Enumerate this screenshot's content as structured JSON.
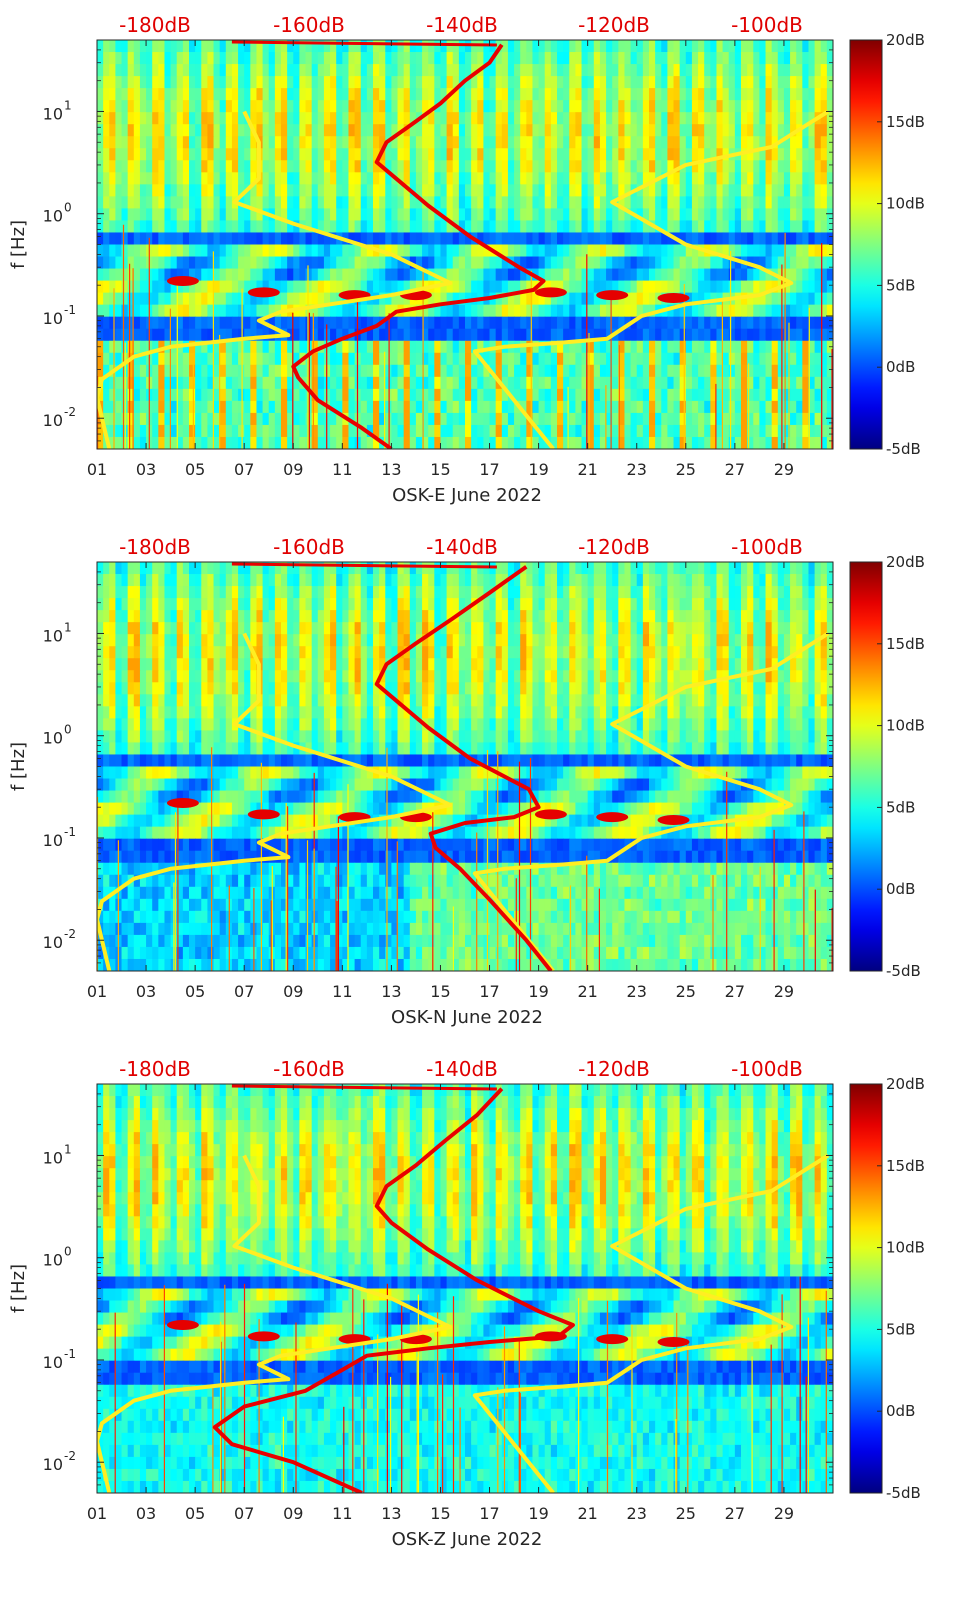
{
  "chart_data": [
    {
      "type": "heatmap",
      "xlabel": "OSK-E June 2022",
      "ylabel": "f [Hz]",
      "x_tick_labels": [
        "01",
        "03",
        "05",
        "07",
        "09",
        "11",
        "13",
        "15",
        "17",
        "19",
        "21",
        "23",
        "25",
        "27",
        "29"
      ],
      "y_tick_labels": [
        "10",
        "10",
        "10",
        "10"
      ],
      "y_tick_exponents": [
        "1",
        "0",
        "-1",
        "-2"
      ],
      "y_scale": "log",
      "ylim": [
        0.005,
        50
      ],
      "top_axis_labels": [
        "-180dB",
        "-160dB",
        "-140dB",
        "-120dB",
        "-100dB"
      ],
      "colorbar_labels": [
        "20dB",
        "15dB",
        "10dB",
        "5dB",
        "0dB",
        "-5dB"
      ],
      "colorbar_range": [
        -5,
        20
      ],
      "colormap": "jet",
      "yellow_curves": [
        {
          "points": [
            [
              1.5,
              0.005
            ],
            [
              1.0,
              0.016
            ],
            [
              1.2,
              0.024
            ],
            [
              2.5,
              0.04
            ],
            [
              4.0,
              0.05
            ],
            [
              7.0,
              0.06
            ],
            [
              8.8,
              0.065
            ],
            [
              7.6,
              0.09
            ],
            [
              8.5,
              0.11
            ],
            [
              10.5,
              0.13
            ],
            [
              13.0,
              0.16
            ],
            [
              15.4,
              0.21
            ],
            [
              13.0,
              0.4
            ],
            [
              9.0,
              0.8
            ],
            [
              6.6,
              1.3
            ],
            [
              7.6,
              2.2
            ],
            [
              7.6,
              5.0
            ],
            [
              7.0,
              10.0
            ]
          ]
        },
        {
          "points": [
            [
              19.6,
              0.005
            ],
            [
              18.0,
              0.015
            ],
            [
              16.4,
              0.045
            ],
            [
              17.6,
              0.05
            ],
            [
              20.0,
              0.055
            ],
            [
              21.8,
              0.06
            ],
            [
              23.2,
              0.1
            ],
            [
              25.0,
              0.13
            ],
            [
              28.0,
              0.16
            ],
            [
              29.3,
              0.21
            ],
            [
              28.0,
              0.3
            ],
            [
              25.0,
              0.5
            ],
            [
              22.0,
              1.3
            ],
            [
              25.0,
              3.0
            ],
            [
              28.5,
              4.5
            ],
            [
              30.8,
              10.0
            ]
          ]
        }
      ],
      "red_curve": [
        [
          13.0,
          0.005
        ],
        [
          11.8,
          0.008
        ],
        [
          10.0,
          0.015
        ],
        [
          9.2,
          0.025
        ],
        [
          9.0,
          0.032
        ],
        [
          9.8,
          0.045
        ],
        [
          11.0,
          0.06
        ],
        [
          12.4,
          0.08
        ],
        [
          13.2,
          0.11
        ],
        [
          15.0,
          0.13
        ],
        [
          17.0,
          0.15
        ],
        [
          18.8,
          0.18
        ],
        [
          19.2,
          0.22
        ],
        [
          18.2,
          0.3
        ],
        [
          16.2,
          0.6
        ],
        [
          14.5,
          1.2
        ],
        [
          13.2,
          2.2
        ],
        [
          12.4,
          3.2
        ],
        [
          12.8,
          5.0
        ],
        [
          14.0,
          8.0
        ],
        [
          15.0,
          12.0
        ],
        [
          16.0,
          20.0
        ],
        [
          17.0,
          30.0
        ],
        [
          17.5,
          45.0
        ]
      ],
      "hot_spots": [
        [
          4.5,
          0.22
        ],
        [
          7.8,
          0.17
        ],
        [
          11.5,
          0.16
        ],
        [
          14.0,
          0.16
        ],
        [
          19.5,
          0.17
        ],
        [
          22.0,
          0.16
        ],
        [
          24.5,
          0.15
        ]
      ]
    },
    {
      "type": "heatmap",
      "xlabel": "OSK-N June 2022",
      "ylabel": "f [Hz]",
      "x_tick_labels": [
        "01",
        "03",
        "05",
        "07",
        "09",
        "11",
        "13",
        "15",
        "17",
        "19",
        "21",
        "23",
        "25",
        "27",
        "29"
      ],
      "y_tick_labels": [
        "10",
        "10",
        "10",
        "10"
      ],
      "y_tick_exponents": [
        "1",
        "0",
        "-1",
        "-2"
      ],
      "y_scale": "log",
      "ylim": [
        0.005,
        50
      ],
      "top_axis_labels": [
        "-180dB",
        "-160dB",
        "-140dB",
        "-120dB",
        "-100dB"
      ],
      "colorbar_labels": [
        "20dB",
        "15dB",
        "10dB",
        "5dB",
        "0dB",
        "-5dB"
      ],
      "colorbar_range": [
        -5,
        20
      ],
      "colormap": "jet",
      "yellow_curves": [
        {
          "points": [
            [
              1.5,
              0.005
            ],
            [
              1.0,
              0.016
            ],
            [
              1.2,
              0.024
            ],
            [
              2.5,
              0.04
            ],
            [
              4.0,
              0.05
            ],
            [
              7.0,
              0.06
            ],
            [
              8.8,
              0.065
            ],
            [
              7.6,
              0.09
            ],
            [
              8.5,
              0.11
            ],
            [
              10.5,
              0.13
            ],
            [
              13.0,
              0.16
            ],
            [
              15.4,
              0.21
            ],
            [
              13.0,
              0.4
            ],
            [
              9.0,
              0.8
            ],
            [
              6.6,
              1.3
            ],
            [
              7.6,
              2.2
            ],
            [
              7.6,
              5.0
            ],
            [
              7.0,
              10.0
            ]
          ]
        },
        {
          "points": [
            [
              19.6,
              0.005
            ],
            [
              18.0,
              0.015
            ],
            [
              16.4,
              0.045
            ],
            [
              17.6,
              0.05
            ],
            [
              20.0,
              0.055
            ],
            [
              21.8,
              0.06
            ],
            [
              23.2,
              0.1
            ],
            [
              25.0,
              0.13
            ],
            [
              28.0,
              0.16
            ],
            [
              29.3,
              0.21
            ],
            [
              28.0,
              0.3
            ],
            [
              25.0,
              0.5
            ],
            [
              22.0,
              1.3
            ],
            [
              25.0,
              3.0
            ],
            [
              28.5,
              4.5
            ],
            [
              30.8,
              10.0
            ]
          ]
        }
      ],
      "red_curve": [
        [
          19.5,
          0.005
        ],
        [
          18.5,
          0.01
        ],
        [
          17.0,
          0.025
        ],
        [
          15.8,
          0.05
        ],
        [
          14.8,
          0.08
        ],
        [
          14.6,
          0.11
        ],
        [
          16.0,
          0.14
        ],
        [
          18.0,
          0.16
        ],
        [
          19.0,
          0.2
        ],
        [
          18.6,
          0.3
        ],
        [
          16.2,
          0.6
        ],
        [
          14.5,
          1.2
        ],
        [
          13.2,
          2.2
        ],
        [
          12.4,
          3.2
        ],
        [
          12.8,
          5.0
        ],
        [
          14.0,
          8.0
        ],
        [
          15.5,
          14.0
        ],
        [
          17.0,
          25.0
        ],
        [
          18.5,
          45.0
        ]
      ],
      "hot_spots": [
        [
          4.5,
          0.22
        ],
        [
          7.8,
          0.17
        ],
        [
          11.5,
          0.16
        ],
        [
          14.0,
          0.16
        ],
        [
          19.5,
          0.17
        ],
        [
          22.0,
          0.16
        ],
        [
          24.5,
          0.15
        ]
      ]
    },
    {
      "type": "heatmap",
      "xlabel": "OSK-Z June 2022",
      "ylabel": "f [Hz]",
      "x_tick_labels": [
        "01",
        "03",
        "05",
        "07",
        "09",
        "11",
        "13",
        "15",
        "17",
        "19",
        "21",
        "23",
        "25",
        "27",
        "29"
      ],
      "y_tick_labels": [
        "10",
        "10",
        "10",
        "10"
      ],
      "y_tick_exponents": [
        "1",
        "0",
        "-1",
        "-2"
      ],
      "y_scale": "log",
      "ylim": [
        0.005,
        50
      ],
      "top_axis_labels": [
        "-180dB",
        "-160dB",
        "-140dB",
        "-120dB",
        "-100dB"
      ],
      "colorbar_labels": [
        "20dB",
        "15dB",
        "10dB",
        "5dB",
        "0dB",
        "-5dB"
      ],
      "colorbar_range": [
        -5,
        20
      ],
      "colormap": "jet",
      "yellow_curves": [
        {
          "points": [
            [
              1.5,
              0.005
            ],
            [
              1.0,
              0.016
            ],
            [
              1.2,
              0.024
            ],
            [
              2.5,
              0.04
            ],
            [
              4.0,
              0.05
            ],
            [
              7.0,
              0.06
            ],
            [
              8.8,
              0.065
            ],
            [
              7.6,
              0.09
            ],
            [
              8.5,
              0.11
            ],
            [
              10.5,
              0.13
            ],
            [
              13.0,
              0.16
            ],
            [
              15.4,
              0.21
            ],
            [
              13.0,
              0.4
            ],
            [
              9.0,
              0.8
            ],
            [
              6.6,
              1.3
            ],
            [
              7.6,
              2.2
            ],
            [
              7.6,
              5.0
            ],
            [
              7.0,
              10.0
            ]
          ]
        },
        {
          "points": [
            [
              19.6,
              0.005
            ],
            [
              18.0,
              0.015
            ],
            [
              16.4,
              0.045
            ],
            [
              17.6,
              0.05
            ],
            [
              20.0,
              0.055
            ],
            [
              21.8,
              0.06
            ],
            [
              23.2,
              0.1
            ],
            [
              25.0,
              0.13
            ],
            [
              28.0,
              0.16
            ],
            [
              29.3,
              0.21
            ],
            [
              28.0,
              0.3
            ],
            [
              25.0,
              0.5
            ],
            [
              22.0,
              1.3
            ],
            [
              25.0,
              3.0
            ],
            [
              28.5,
              4.5
            ],
            [
              30.8,
              10.0
            ]
          ]
        }
      ],
      "red_curve": [
        [
          11.8,
          0.005
        ],
        [
          9.0,
          0.01
        ],
        [
          6.5,
          0.015
        ],
        [
          5.8,
          0.022
        ],
        [
          7.0,
          0.035
        ],
        [
          9.5,
          0.05
        ],
        [
          11.0,
          0.08
        ],
        [
          12.0,
          0.11
        ],
        [
          14.5,
          0.13
        ],
        [
          17.0,
          0.15
        ],
        [
          19.8,
          0.17
        ],
        [
          20.4,
          0.22
        ],
        [
          19.0,
          0.3
        ],
        [
          16.5,
          0.6
        ],
        [
          14.5,
          1.2
        ],
        [
          13.0,
          2.2
        ],
        [
          12.4,
          3.2
        ],
        [
          12.8,
          5.0
        ],
        [
          14.0,
          8.0
        ],
        [
          15.2,
          14.0
        ],
        [
          16.5,
          25.0
        ],
        [
          17.5,
          45.0
        ]
      ],
      "hot_spots": [
        [
          4.5,
          0.22
        ],
        [
          7.8,
          0.17
        ],
        [
          11.5,
          0.16
        ],
        [
          14.0,
          0.16
        ],
        [
          19.5,
          0.17
        ],
        [
          22.0,
          0.16
        ],
        [
          24.5,
          0.15
        ]
      ]
    }
  ]
}
